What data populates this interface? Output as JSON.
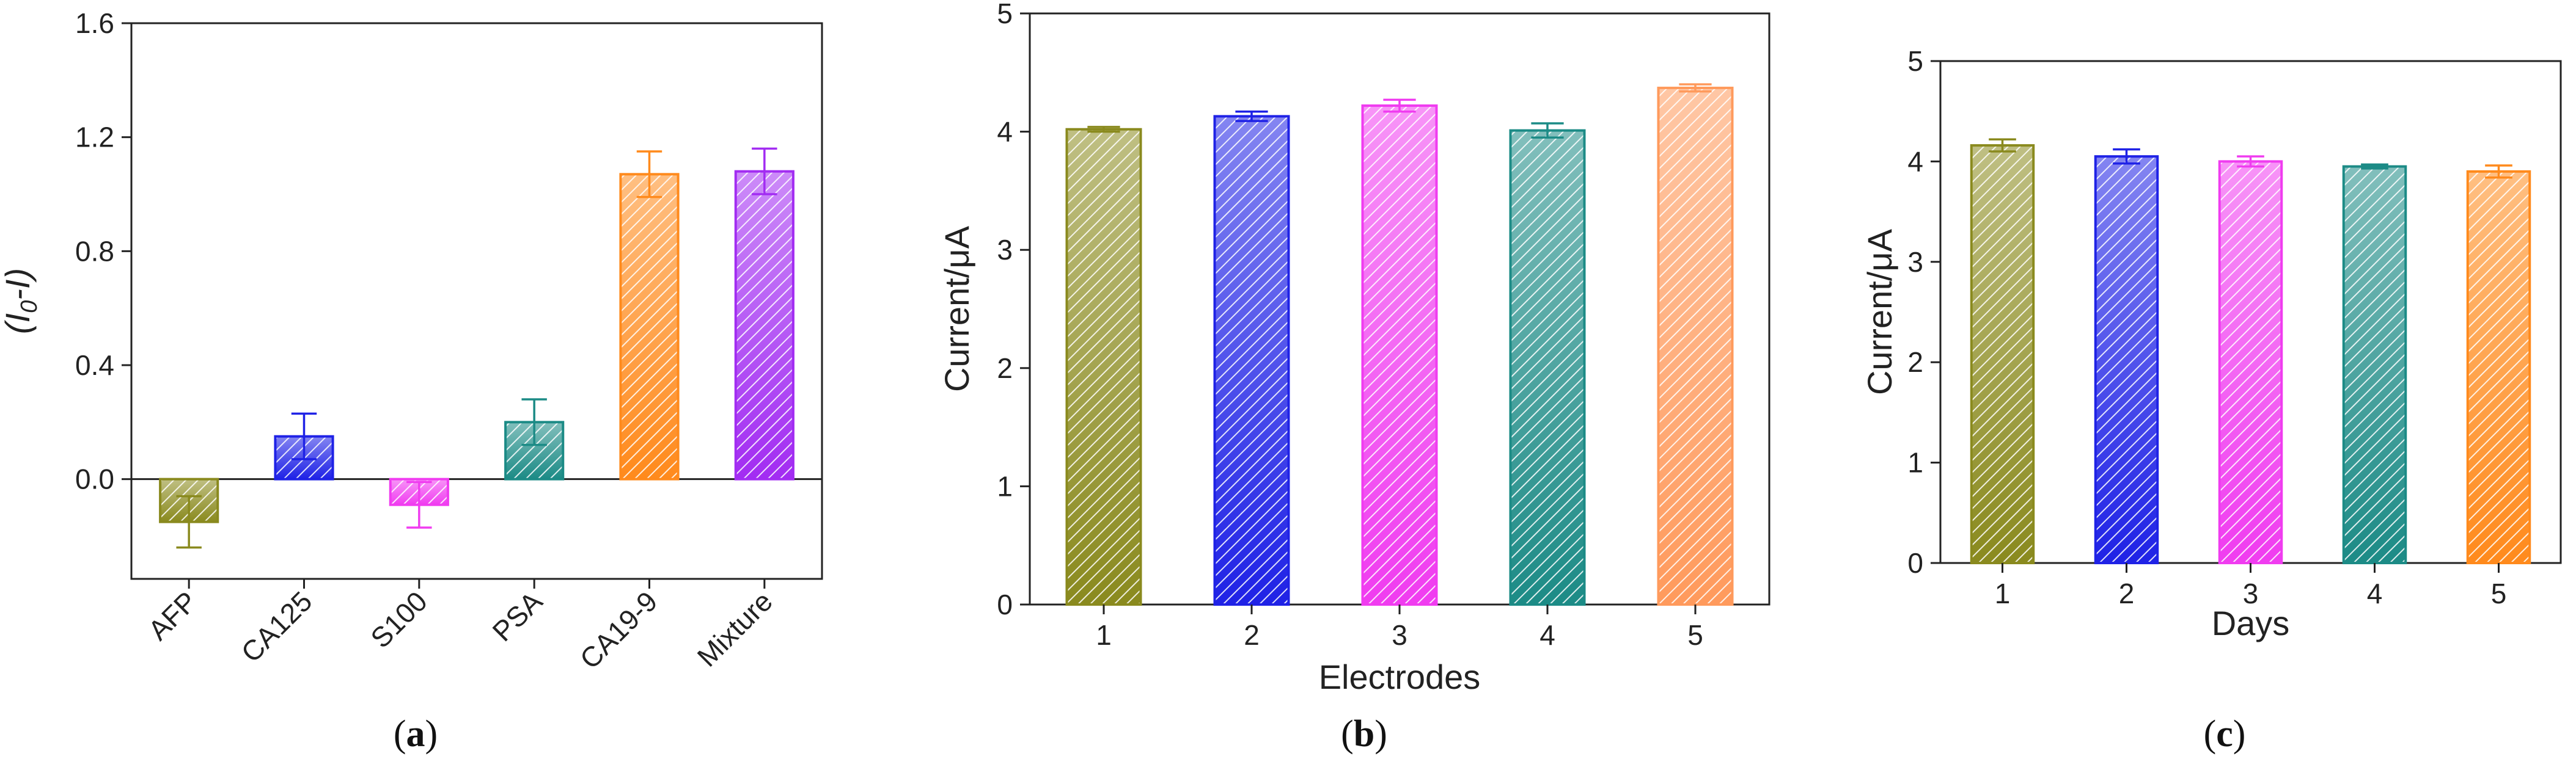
{
  "chart_data": [
    {
      "panel": "a",
      "panel_label": "(a)",
      "type": "bar",
      "ylabel": "(I0-I)",
      "ylabel_main": "(I",
      "ylabel_sub": "0",
      "ylabel_tail": "-I)",
      "xlabel": "",
      "ylim": [
        -0.35,
        1.6
      ],
      "yticks": [
        0.0,
        0.4,
        0.8,
        1.2,
        1.6
      ],
      "ytick_labels": [
        "0.0",
        "0.4",
        "0.8",
        "1.2",
        "1.6"
      ],
      "categories": [
        "AFP",
        "CA125",
        "S100",
        "PSA",
        "CA19-9",
        "Mixture"
      ],
      "values": [
        -0.15,
        0.15,
        -0.09,
        0.2,
        1.07,
        1.08
      ],
      "errors": [
        0.09,
        0.08,
        0.08,
        0.08,
        0.08,
        0.08
      ],
      "colors": [
        "#8a8a1e",
        "#1f22e6",
        "#f03cf0",
        "#1c8b86",
        "#ff8a1c",
        "#a22cf2"
      ],
      "x_tick_rotation": "rotated"
    },
    {
      "panel": "b",
      "panel_label": "(b)",
      "type": "bar",
      "ylabel": "Current/μA",
      "xlabel": "Electrodes",
      "ylim": [
        0,
        5
      ],
      "yticks": [
        0,
        1,
        2,
        3,
        4,
        5
      ],
      "ytick_labels": [
        "0",
        "1",
        "2",
        "3",
        "4",
        "5"
      ],
      "categories": [
        "1",
        "2",
        "3",
        "4",
        "5"
      ],
      "values": [
        4.02,
        4.13,
        4.22,
        4.01,
        4.37
      ],
      "errors": [
        0.02,
        0.04,
        0.05,
        0.06,
        0.03
      ],
      "colors": [
        "#8a8a1e",
        "#1f22e6",
        "#f03cf0",
        "#1c8b86",
        "#ff9a5c"
      ]
    },
    {
      "panel": "c",
      "panel_label": "(c)",
      "type": "bar",
      "ylabel": "Current/μA",
      "xlabel": "Days",
      "ylim": [
        0,
        5
      ],
      "yticks": [
        0,
        1,
        2,
        3,
        4,
        5
      ],
      "ytick_labels": [
        "0",
        "1",
        "2",
        "3",
        "4",
        "5"
      ],
      "categories": [
        "1",
        "2",
        "3",
        "4",
        "5"
      ],
      "values": [
        4.16,
        4.05,
        4.0,
        3.95,
        3.9
      ],
      "errors": [
        0.06,
        0.07,
        0.05,
        0.02,
        0.06
      ],
      "colors": [
        "#8a8a1e",
        "#1f22e6",
        "#f03cf0",
        "#1c8b86",
        "#ff8a1c"
      ]
    }
  ]
}
